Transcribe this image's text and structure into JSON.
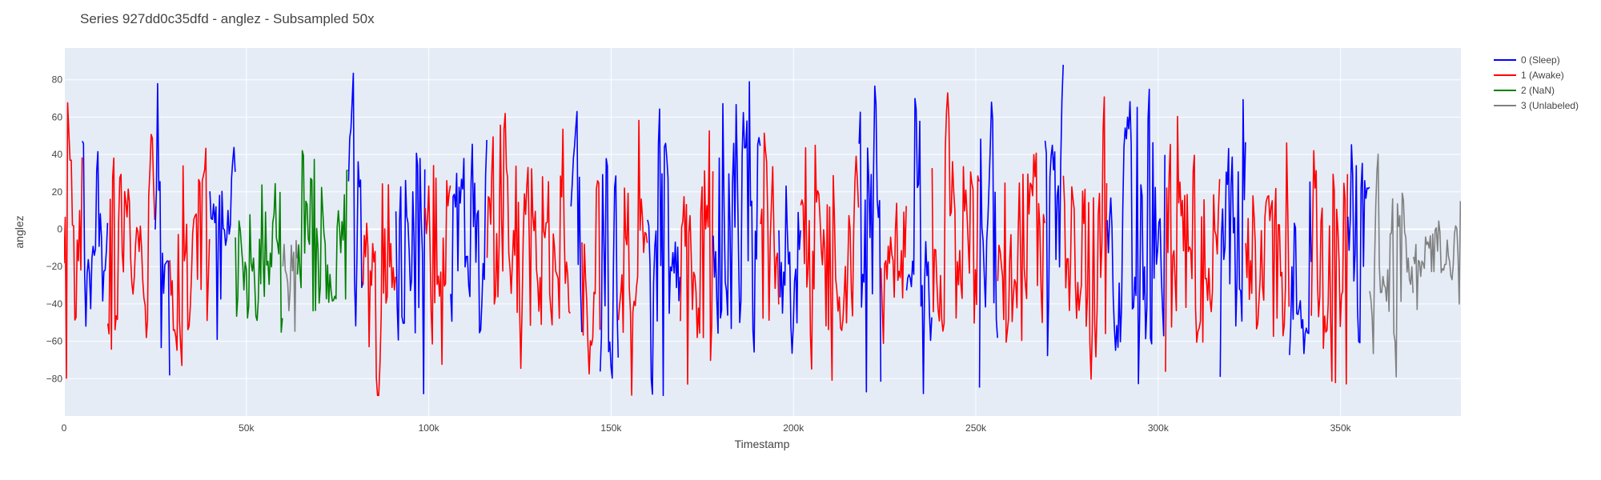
{
  "chart_data": {
    "type": "line",
    "title": "Series 927dd0c35dfd - anglez - Subsampled 50x",
    "xlabel": "Timestamp",
    "ylabel": "anglez",
    "xlim": [
      0,
      383000
    ],
    "ylim": [
      -100,
      97
    ],
    "x_ticks": [
      {
        "value": 0,
        "label": "0"
      },
      {
        "value": 50000,
        "label": "50k"
      },
      {
        "value": 100000,
        "label": "100k"
      },
      {
        "value": 150000,
        "label": "150k"
      },
      {
        "value": 200000,
        "label": "200k"
      },
      {
        "value": 250000,
        "label": "250k"
      },
      {
        "value": 300000,
        "label": "300k"
      },
      {
        "value": 350000,
        "label": "350k"
      }
    ],
    "y_ticks": [
      {
        "value": 80,
        "label": "80"
      },
      {
        "value": 60,
        "label": "60"
      },
      {
        "value": 40,
        "label": "40"
      },
      {
        "value": 20,
        "label": "20"
      },
      {
        "value": 0,
        "label": "0"
      },
      {
        "value": -20,
        "label": "−20"
      },
      {
        "value": -40,
        "label": "−40"
      },
      {
        "value": -60,
        "label": "−60"
      },
      {
        "value": -80,
        "label": "−80"
      }
    ],
    "grid": true,
    "legend_position": "top-right",
    "series": [
      {
        "name": "0 (Sleep)",
        "color": "#0000ff"
      },
      {
        "name": "1 (Awake)",
        "color": "#ff0000"
      },
      {
        "name": "2 (NaN)",
        "color": "#008000"
      },
      {
        "name": "3 (Unlabeled)",
        "color": "#808080"
      }
    ],
    "segments": [
      {
        "series": 1,
        "x_start": 0,
        "x_end": 5000,
        "amplitude": 45,
        "center": -5
      },
      {
        "series": 0,
        "x_start": 5000,
        "x_end": 12000,
        "amplitude": 55,
        "center": -5
      },
      {
        "series": 1,
        "x_start": 12000,
        "x_end": 25000,
        "amplitude": 45,
        "center": -10
      },
      {
        "series": 0,
        "x_start": 25000,
        "x_end": 29000,
        "amplitude": 50,
        "center": 0
      },
      {
        "series": 1,
        "x_start": 29000,
        "x_end": 40000,
        "amplitude": 45,
        "center": -10
      },
      {
        "series": 0,
        "x_start": 40000,
        "x_end": 47000,
        "amplitude": 50,
        "center": -5
      },
      {
        "series": 2,
        "x_start": 47000,
        "x_end": 60000,
        "amplitude": 35,
        "center": -15
      },
      {
        "series": 3,
        "x_start": 60000,
        "x_end": 64000,
        "amplitude": 10,
        "center": -15
      },
      {
        "series": 2,
        "x_start": 64000,
        "x_end": 78000,
        "amplitude": 40,
        "center": -5
      },
      {
        "series": 0,
        "x_start": 78000,
        "x_end": 82000,
        "amplitude": 55,
        "center": 0
      },
      {
        "series": 1,
        "x_start": 82000,
        "x_end": 91000,
        "amplitude": 40,
        "center": -10
      },
      {
        "series": 0,
        "x_start": 91000,
        "x_end": 99000,
        "amplitude": 55,
        "center": -5
      },
      {
        "series": 1,
        "x_start": 99000,
        "x_end": 106000,
        "amplitude": 45,
        "center": -5
      },
      {
        "series": 0,
        "x_start": 106000,
        "x_end": 116000,
        "amplitude": 55,
        "center": -5
      },
      {
        "series": 1,
        "x_start": 116000,
        "x_end": 139000,
        "amplitude": 45,
        "center": -10
      },
      {
        "series": 0,
        "x_start": 139000,
        "x_end": 142000,
        "amplitude": 45,
        "center": -5
      },
      {
        "series": 1,
        "x_start": 142000,
        "x_end": 147000,
        "amplitude": 45,
        "center": -20
      },
      {
        "series": 0,
        "x_start": 147000,
        "x_end": 152000,
        "amplitude": 55,
        "center": -5
      },
      {
        "series": 1,
        "x_start": 152000,
        "x_end": 160000,
        "amplitude": 45,
        "center": -15
      },
      {
        "series": 0,
        "x_start": 160000,
        "x_end": 169000,
        "amplitude": 55,
        "center": -10
      },
      {
        "series": 1,
        "x_start": 169000,
        "x_end": 178000,
        "amplitude": 45,
        "center": -10
      },
      {
        "series": 0,
        "x_start": 178000,
        "x_end": 191000,
        "amplitude": 55,
        "center": -5
      },
      {
        "series": 1,
        "x_start": 191000,
        "x_end": 196000,
        "amplitude": 40,
        "center": -10
      },
      {
        "series": 0,
        "x_start": 196000,
        "x_end": 202000,
        "amplitude": 45,
        "center": -10
      },
      {
        "series": 1,
        "x_start": 202000,
        "x_end": 218000,
        "amplitude": 45,
        "center": -10
      },
      {
        "series": 0,
        "x_start": 218000,
        "x_end": 224000,
        "amplitude": 55,
        "center": -5
      },
      {
        "series": 1,
        "x_start": 224000,
        "x_end": 231000,
        "amplitude": 40,
        "center": -10
      },
      {
        "series": 0,
        "x_start": 231000,
        "x_end": 238000,
        "amplitude": 55,
        "center": -5
      },
      {
        "series": 1,
        "x_start": 238000,
        "x_end": 251000,
        "amplitude": 45,
        "center": -10
      },
      {
        "series": 0,
        "x_start": 251000,
        "x_end": 256000,
        "amplitude": 55,
        "center": -5
      },
      {
        "series": 1,
        "x_start": 256000,
        "x_end": 269000,
        "amplitude": 45,
        "center": -10
      },
      {
        "series": 0,
        "x_start": 269000,
        "x_end": 274000,
        "amplitude": 55,
        "center": -5
      },
      {
        "series": 1,
        "x_start": 274000,
        "x_end": 286000,
        "amplitude": 45,
        "center": -15
      },
      {
        "series": 0,
        "x_start": 286000,
        "x_end": 302000,
        "amplitude": 55,
        "center": -5
      },
      {
        "series": 1,
        "x_start": 302000,
        "x_end": 317000,
        "amplitude": 45,
        "center": -10
      },
      {
        "series": 0,
        "x_start": 317000,
        "x_end": 324000,
        "amplitude": 55,
        "center": -5
      },
      {
        "series": 1,
        "x_start": 324000,
        "x_end": 336000,
        "amplitude": 45,
        "center": -15
      },
      {
        "series": 0,
        "x_start": 336000,
        "x_end": 342000,
        "amplitude": 50,
        "center": -15
      },
      {
        "series": 1,
        "x_start": 342000,
        "x_end": 352000,
        "amplitude": 45,
        "center": -10
      },
      {
        "series": 0,
        "x_start": 352000,
        "x_end": 358000,
        "amplitude": 55,
        "center": -5
      },
      {
        "series": 3,
        "x_start": 358000,
        "x_end": 370000,
        "amplitude": 40,
        "center": -10
      },
      {
        "series": 3,
        "x_start": 370000,
        "x_end": 383000,
        "amplitude": 12,
        "center": -12
      }
    ]
  }
}
